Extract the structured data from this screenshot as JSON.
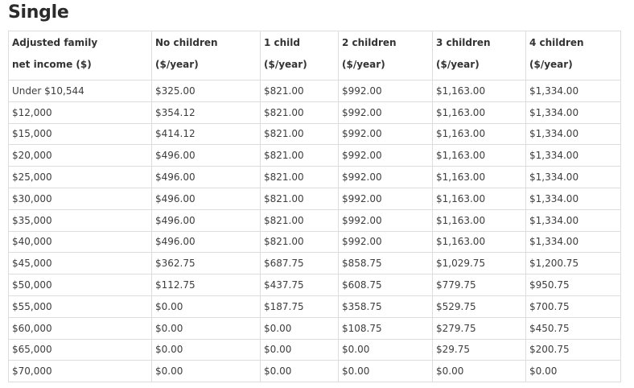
{
  "title": "Single",
  "table": {
    "headers": [
      {
        "line1": "Adjusted family",
        "line2": "net income ($)"
      },
      {
        "line1": "No children",
        "line2": "($/year)"
      },
      {
        "line1": "1 child",
        "line2": "($/year)"
      },
      {
        "line1": "2 children",
        "line2": "($/year)"
      },
      {
        "line1": "3 children",
        "line2": "($/year)"
      },
      {
        "line1": "4 children",
        "line2": "($/year)"
      }
    ],
    "rows": [
      [
        "Under $10,544",
        "$325.00",
        "$821.00",
        "$992.00",
        "$1,163.00",
        "$1,334.00"
      ],
      [
        "$12,000",
        "$354.12",
        "$821.00",
        "$992.00",
        "$1,163.00",
        "$1,334.00"
      ],
      [
        "$15,000",
        "$414.12",
        "$821.00",
        "$992.00",
        "$1,163.00",
        "$1,334.00"
      ],
      [
        "$20,000",
        "$496.00",
        "$821.00",
        "$992.00",
        "$1,163.00",
        "$1,334.00"
      ],
      [
        "$25,000",
        "$496.00",
        "$821.00",
        "$992.00",
        "$1,163.00",
        "$1,334.00"
      ],
      [
        "$30,000",
        "$496.00",
        "$821.00",
        "$992.00",
        "$1,163.00",
        "$1,334.00"
      ],
      [
        "$35,000",
        "$496.00",
        "$821.00",
        "$992.00",
        "$1,163.00",
        "$1,334.00"
      ],
      [
        "$40,000",
        "$496.00",
        "$821.00",
        "$992.00",
        "$1,163.00",
        "$1,334.00"
      ],
      [
        "$45,000",
        "$362.75",
        "$687.75",
        "$858.75",
        "$1,029.75",
        "$1,200.75"
      ],
      [
        "$50,000",
        "$112.75",
        "$437.75",
        "$608.75",
        "$779.75",
        "$950.75"
      ],
      [
        "$55,000",
        "$0.00",
        "$187.75",
        "$358.75",
        "$529.75",
        "$700.75"
      ],
      [
        "$60,000",
        "$0.00",
        "$0.00",
        "$108.75",
        "$279.75",
        "$450.75"
      ],
      [
        "$65,000",
        "$0.00",
        "$0.00",
        "$0.00",
        "$29.75",
        "$200.75"
      ],
      [
        "$70,000",
        "$0.00",
        "$0.00",
        "$0.00",
        "$0.00",
        "$0.00"
      ]
    ]
  }
}
